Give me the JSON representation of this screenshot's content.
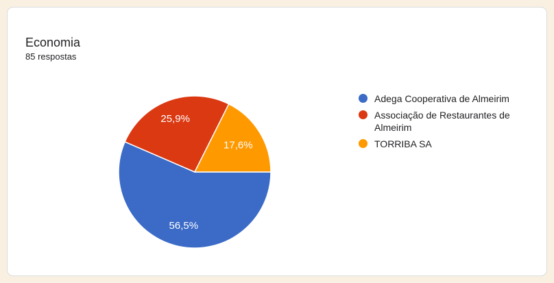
{
  "card": {
    "title": "Economia",
    "subtitle": "85 respostas"
  },
  "chart_data": {
    "type": "pie",
    "title": "Economia",
    "subtitle": "85 respostas",
    "total_responses": 85,
    "start_angle_deg": 0,
    "direction": "clockwise",
    "legend_position": "right",
    "slices": [
      {
        "name": "Adega Cooperativa de Almeirim",
        "value_pct": 56.5,
        "label": "56,5%",
        "color": "#3B6BC7"
      },
      {
        "name": "Associação de Restaurantes de Almeirim",
        "value_pct": 25.9,
        "label": "25,9%",
        "color": "#DB3912"
      },
      {
        "name": "TORRIBA SA",
        "value_pct": 17.6,
        "label": "17,6%",
        "color": "#FF9900"
      }
    ]
  },
  "colors": {
    "page_background": "#FAF0E1",
    "card_background": "#FFFFFF",
    "card_border": "#DADCE0",
    "text": "#202124",
    "slice_label_text": "#FFFFFF"
  }
}
